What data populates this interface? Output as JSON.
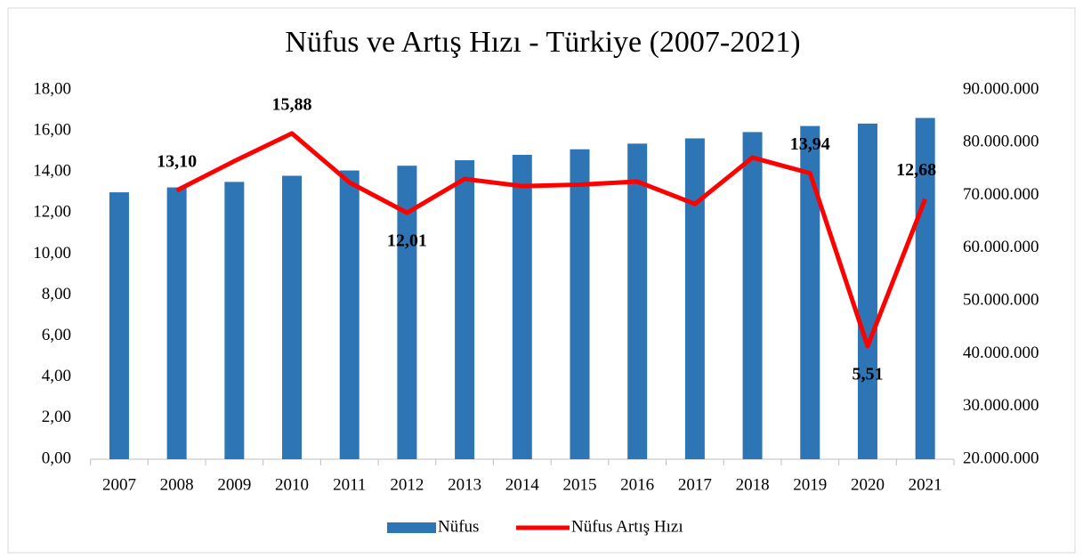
{
  "chart_data": {
    "type": "bar_line",
    "title": "Nüfus ve Artış Hızı - Türkiye (2007-2021)",
    "categories": [
      "2007",
      "2008",
      "2009",
      "2010",
      "2011",
      "2012",
      "2013",
      "2014",
      "2015",
      "2016",
      "2017",
      "2018",
      "2019",
      "2020",
      "2021"
    ],
    "series": [
      {
        "name": "Nüfus",
        "type": "bar",
        "axis": "y2",
        "color": "#2e75b6",
        "values": [
          70586256,
          71517100,
          72561312,
          73722988,
          74724269,
          75627384,
          76667864,
          77695904,
          78741053,
          79814871,
          80810525,
          82003882,
          83154997,
          83614362,
          84680273
        ]
      },
      {
        "name": "Nüfus Artış Hızı",
        "type": "line",
        "axis": "y",
        "color": "#ff0000",
        "values": [
          null,
          13.1,
          14.53,
          15.88,
          13.49,
          12.01,
          13.66,
          13.31,
          13.38,
          13.53,
          12.44,
          14.7,
          13.94,
          5.51,
          12.68
        ],
        "value_labels": [
          null,
          "13,10",
          null,
          "15,88",
          null,
          "12,01",
          null,
          null,
          null,
          null,
          null,
          null,
          "13,94",
          "5,51",
          "12,68"
        ]
      }
    ],
    "ylim": [
      0,
      18
    ],
    "yticks": [
      {
        "value": 0,
        "label": "0,00"
      },
      {
        "value": 2,
        "label": "2,00"
      },
      {
        "value": 4,
        "label": "4,00"
      },
      {
        "value": 6,
        "label": "6,00"
      },
      {
        "value": 8,
        "label": "8,00"
      },
      {
        "value": 10,
        "label": "10,00"
      },
      {
        "value": 12,
        "label": "12,00"
      },
      {
        "value": 14,
        "label": "14,00"
      },
      {
        "value": 16,
        "label": "16,00"
      },
      {
        "value": 18,
        "label": "18,00"
      }
    ],
    "y2lim": [
      20000000,
      90000000
    ],
    "y2ticks": [
      {
        "value": 20000000,
        "label": "20.000.000"
      },
      {
        "value": 30000000,
        "label": "30.000.000"
      },
      {
        "value": 40000000,
        "label": "40.000.000"
      },
      {
        "value": 50000000,
        "label": "50.000.000"
      },
      {
        "value": 60000000,
        "label": "60.000.000"
      },
      {
        "value": 70000000,
        "label": "70.000.000"
      },
      {
        "value": 80000000,
        "label": "80.000.000"
      },
      {
        "value": 90000000,
        "label": "90.000.000"
      }
    ],
    "legend": "bottom"
  }
}
